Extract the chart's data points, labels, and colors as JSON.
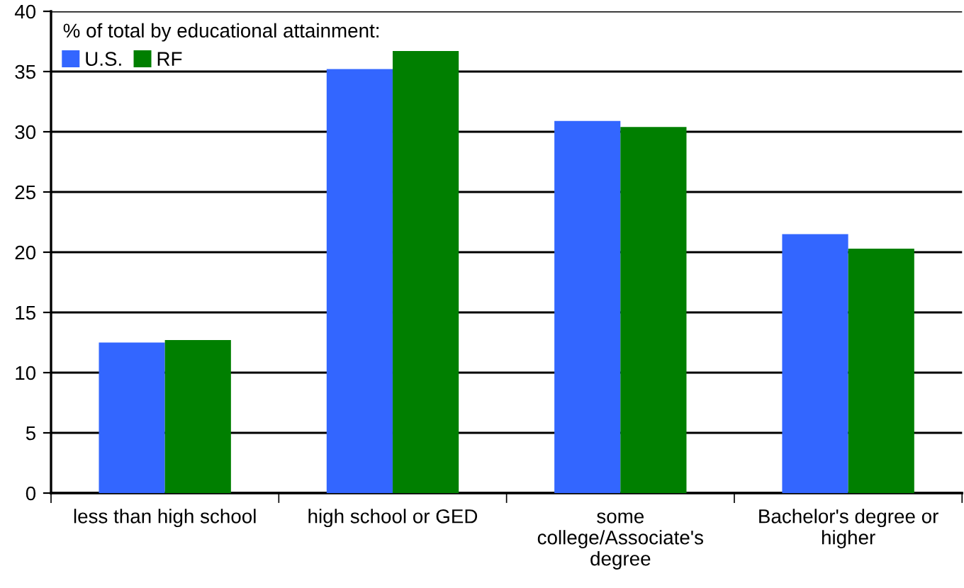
{
  "chart_data": {
    "type": "bar",
    "legend_title": "% of total by educational attainment:",
    "categories": [
      "less than high school",
      "high school or GED",
      "some\ncollege/Associate's\ndegree",
      "Bachelor's degree or\nhigher"
    ],
    "series": [
      {
        "name": "U.S.",
        "color": "#3366ff",
        "values": [
          12.5,
          35.2,
          30.9,
          21.5
        ]
      },
      {
        "name": "RF",
        "color": "#007f00",
        "values": [
          12.7,
          36.7,
          30.4,
          20.3
        ]
      }
    ],
    "ylim": [
      0,
      40
    ],
    "yticks": [
      0,
      5,
      10,
      15,
      20,
      25,
      30,
      35,
      40
    ],
    "grid": "y",
    "legend": "top left"
  }
}
